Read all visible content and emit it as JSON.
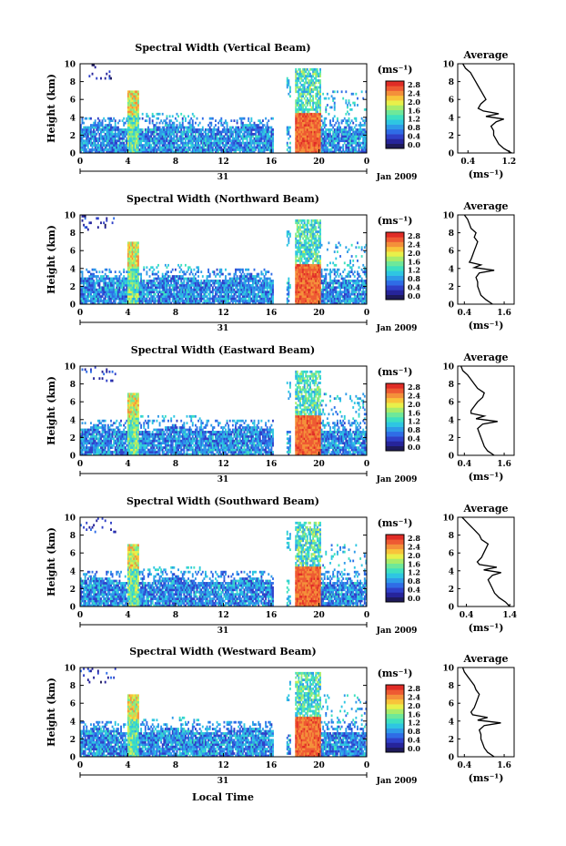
{
  "figure": {
    "xlabel": "Local Time",
    "date_label": "Jan 2009",
    "day_label": "31",
    "colorbar_unit": "(ms⁻¹)",
    "colormap": [
      "#1e1a5a",
      "#26249a",
      "#2f40c8",
      "#2f6ce6",
      "#2e9ae8",
      "#2ec6e2",
      "#3ee0c0",
      "#6ee89a",
      "#a8ec6a",
      "#e8f04a",
      "#f8c43a",
      "#f4903a",
      "#ee5a32",
      "#e02c26"
    ]
  },
  "chart_data": [
    {
      "type": "heatmap",
      "title": "Spectral Width (Vertical Beam)",
      "ylabel": "Height (km)",
      "xlim": [
        0,
        24
      ],
      "ylim": [
        0,
        10
      ],
      "xticks": [
        "0",
        "4",
        "8",
        "12",
        "16",
        "20",
        "0"
      ],
      "yticks": [
        "0",
        "2",
        "4",
        "6",
        "8",
        "10"
      ],
      "colorbar_ticks": [
        "0.0",
        "0.4",
        "0.8",
        "1.2",
        "1.6",
        "2.0",
        "2.4",
        "2.8"
      ],
      "profile": {
        "title": "Average",
        "xlabel": "(ms⁻¹)",
        "xlim": [
          0.2,
          1.3
        ],
        "xticks": [
          "0.4",
          "1.2"
        ],
        "yticks": [
          "0",
          "2",
          "4",
          "6",
          "8",
          "10"
        ],
        "heights": [
          0,
          0.5,
          1,
          1.5,
          2,
          2.5,
          3,
          3.5,
          3.8,
          4.1,
          4.4,
          4.7,
          5,
          5.5,
          6,
          6.5,
          7,
          7.5,
          8,
          8.5,
          9,
          9.5,
          10
        ],
        "values": [
          1.25,
          1.1,
          1.0,
          0.95,
          0.9,
          0.9,
          0.85,
          0.95,
          1.1,
          0.75,
          1.0,
          0.7,
          0.6,
          0.65,
          0.75,
          0.7,
          0.65,
          0.6,
          0.55,
          0.5,
          0.45,
          0.35,
          0.3
        ]
      }
    },
    {
      "type": "heatmap",
      "title": "Spectral Width (Northward Beam)",
      "ylabel": "Height (km)",
      "xlim": [
        0,
        24
      ],
      "ylim": [
        0,
        10
      ],
      "xticks": [
        "0",
        "4",
        "8",
        "12",
        "16",
        "20",
        "0"
      ],
      "yticks": [
        "0",
        "2",
        "4",
        "6",
        "8",
        "10"
      ],
      "colorbar_ticks": [
        "0.0",
        "0.4",
        "0.8",
        "1.2",
        "1.6",
        "2.0",
        "2.4",
        "2.8"
      ],
      "profile": {
        "title": "Average",
        "xlabel": "(ms⁻¹)",
        "xlim": [
          0.2,
          1.9
        ],
        "xticks": [
          "0.4",
          "1.6"
        ],
        "yticks": [
          "0",
          "2",
          "4",
          "6",
          "8",
          "10"
        ],
        "heights": [
          0,
          0.5,
          1,
          1.5,
          2,
          2.5,
          3,
          3.5,
          3.8,
          4.1,
          4.4,
          4.7,
          5,
          5.5,
          6,
          6.5,
          7,
          7.5,
          8,
          8.5,
          9,
          9.5,
          10
        ],
        "values": [
          1.25,
          1.05,
          0.9,
          0.85,
          0.8,
          0.8,
          0.75,
          0.85,
          1.3,
          0.7,
          0.9,
          0.55,
          0.6,
          0.65,
          0.7,
          0.75,
          0.8,
          0.7,
          0.75,
          0.6,
          0.55,
          0.5,
          0.4
        ]
      }
    },
    {
      "type": "heatmap",
      "title": "Spectral Width (Eastward Beam)",
      "ylabel": "Height (km)",
      "xlim": [
        0,
        24
      ],
      "ylim": [
        0,
        10
      ],
      "xticks": [
        "0",
        "4",
        "8",
        "12",
        "16",
        "20",
        "0"
      ],
      "yticks": [
        "0",
        "2",
        "4",
        "6",
        "8",
        "10"
      ],
      "colorbar_ticks": [
        "0.0",
        "0.4",
        "0.8",
        "1.2",
        "1.6",
        "2.0",
        "2.4",
        "2.8"
      ],
      "profile": {
        "title": "Average",
        "xlabel": "(ms⁻¹)",
        "xlim": [
          0.2,
          1.9
        ],
        "xticks": [
          "0.4",
          "1.6"
        ],
        "yticks": [
          "0",
          "2",
          "4",
          "6",
          "8",
          "10"
        ],
        "heights": [
          0,
          0.5,
          1,
          1.5,
          2,
          2.5,
          3,
          3.5,
          3.8,
          4.1,
          4.4,
          4.7,
          5,
          5.5,
          6,
          6.5,
          7,
          7.5,
          8,
          8.5,
          9,
          9.5,
          10
        ],
        "values": [
          1.3,
          1.1,
          1.0,
          0.95,
          0.9,
          0.85,
          0.8,
          0.95,
          1.4,
          0.75,
          1.0,
          0.6,
          0.6,
          0.7,
          0.8,
          0.95,
          1.0,
          0.8,
          0.7,
          0.6,
          0.5,
          0.35,
          0.3
        ]
      }
    },
    {
      "type": "heatmap",
      "title": "Spectral Width (Southward Beam)",
      "ylabel": "Height (km)",
      "xlim": [
        0,
        24
      ],
      "ylim": [
        0,
        10
      ],
      "xticks": [
        "0",
        "4",
        "8",
        "12",
        "16",
        "20",
        "0"
      ],
      "yticks": [
        "0",
        "2",
        "4",
        "6",
        "8",
        "10"
      ],
      "colorbar_ticks": [
        "0.0",
        "0.4",
        "0.8",
        "1.2",
        "1.6",
        "2.0",
        "2.4",
        "2.8"
      ],
      "profile": {
        "title": "Average",
        "xlabel": "(ms⁻¹)",
        "xlim": [
          0.2,
          1.5
        ],
        "xticks": [
          "0.4",
          "1.4"
        ],
        "yticks": [
          "0",
          "2",
          "4",
          "6",
          "8",
          "10"
        ],
        "heights": [
          0,
          0.5,
          1,
          1.5,
          2,
          2.5,
          3,
          3.5,
          3.8,
          4.1,
          4.4,
          4.7,
          5,
          5.5,
          6,
          6.5,
          7,
          7.5,
          8,
          8.5,
          9,
          9.5,
          10
        ],
        "values": [
          1.4,
          1.3,
          1.15,
          1.05,
          1.0,
          0.95,
          0.9,
          1.0,
          1.2,
          0.8,
          1.1,
          0.7,
          0.65,
          0.75,
          0.8,
          0.85,
          0.9,
          0.75,
          0.7,
          0.6,
          0.5,
          0.4,
          0.3
        ]
      }
    },
    {
      "type": "heatmap",
      "title": "Spectral Width (Westward Beam)",
      "ylabel": "Height (km)",
      "xlim": [
        0,
        24
      ],
      "ylim": [
        0,
        10
      ],
      "xticks": [
        "0",
        "4",
        "8",
        "12",
        "16",
        "20",
        "0"
      ],
      "yticks": [
        "0",
        "2",
        "4",
        "6",
        "8",
        "10"
      ],
      "colorbar_ticks": [
        "0.0",
        "0.4",
        "0.8",
        "1.2",
        "1.6",
        "2.0",
        "2.4",
        "2.8"
      ],
      "profile": {
        "title": "Average",
        "xlabel": "(ms⁻¹)",
        "xlim": [
          0.2,
          1.9
        ],
        "xticks": [
          "0.4",
          "1.6"
        ],
        "yticks": [
          "0",
          "2",
          "4",
          "6",
          "8",
          "10"
        ],
        "heights": [
          0,
          0.5,
          1,
          1.5,
          2,
          2.5,
          3,
          3.5,
          3.8,
          4.1,
          4.4,
          4.7,
          5,
          5.5,
          6,
          6.5,
          7,
          7.5,
          8,
          8.5,
          9,
          9.5,
          10
        ],
        "values": [
          1.3,
          1.1,
          1.0,
          0.95,
          0.9,
          0.9,
          0.85,
          1.0,
          1.5,
          0.8,
          1.1,
          0.65,
          0.6,
          0.7,
          0.75,
          0.8,
          0.85,
          0.75,
          0.7,
          0.6,
          0.5,
          0.4,
          0.35
        ]
      }
    }
  ]
}
